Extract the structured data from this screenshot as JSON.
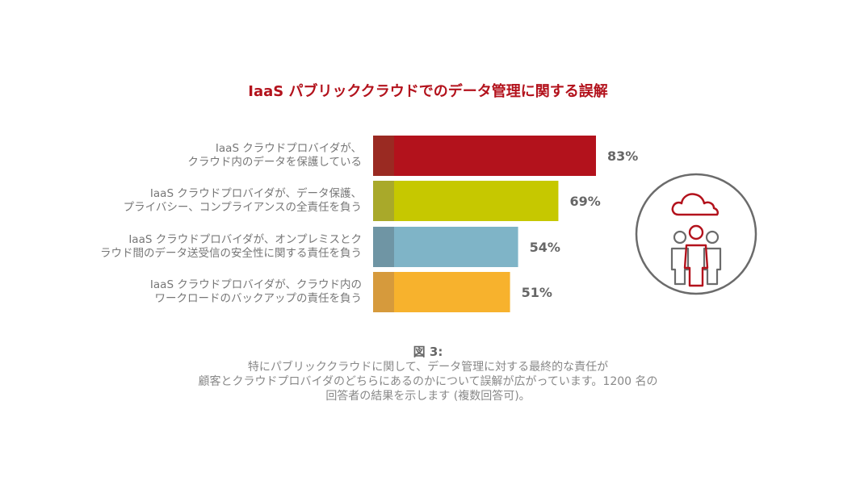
{
  "title": "IaaS パブリッククラウドでのデータ管理に関する誤解",
  "chart_data": {
    "type": "bar",
    "orientation": "horizontal",
    "title": "IaaS パブリッククラウドでのデータ管理に関する誤解",
    "value_suffix": "%",
    "xlim": [
      0,
      100
    ],
    "categories": [
      [
        "IaaS クラウドプロバイダが、",
        "クラウド内のデータを保護している"
      ],
      [
        "IaaS クラウドプロバイダが、データ保護、",
        "プライバシー、コンプライアンスの全責任を負う"
      ],
      [
        "IaaS クラウドプロバイダが、オンプレミスとク",
        "ラウド間のデータ送受信の安全性に関する責任を負う"
      ],
      [
        "IaaS クラウドプロバイダが、クラウド内の",
        "ワークロードのバックアップの責任を負う"
      ]
    ],
    "values": [
      83,
      69,
      54,
      51
    ],
    "value_labels": [
      "83%",
      "69%",
      "54%",
      "51%"
    ],
    "colors": [
      "#b3121c",
      "#c6c800",
      "#7fb4c7",
      "#f7b22d"
    ],
    "accent_colors": [
      "#9a2a22",
      "#a9a92a",
      "#6f95a4",
      "#d69a3c"
    ]
  },
  "figure_label": "図 3:",
  "caption": [
    "特にパブリッククラウドに関して、データ管理に対する最終的な責任が",
    "顧客とクラウドプロバイダのどちらにあるのかについて誤解が広がっています。1200 名の",
    "回答者の結果を示します (複数回答可)。"
  ],
  "icon": "cloud-people-icon"
}
